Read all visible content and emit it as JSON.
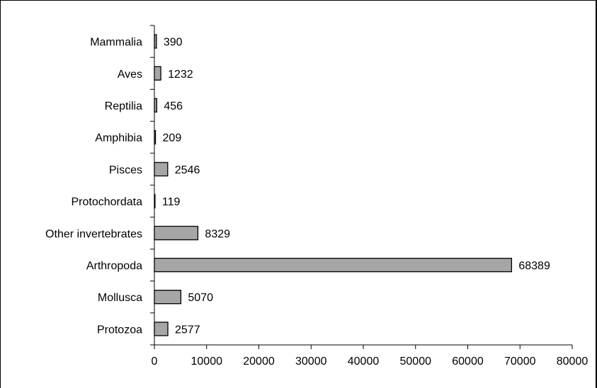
{
  "chart_data": {
    "type": "bar",
    "orientation": "horizontal",
    "categories": [
      "Mammalia",
      "Aves",
      "Reptilia",
      "Amphibia",
      "Pisces",
      "Protochordata",
      "Other invertebrates",
      "Arthropoda",
      "Mollusca",
      "Protozoa"
    ],
    "values": [
      390,
      1232,
      456,
      209,
      2546,
      119,
      8329,
      68389,
      5070,
      2577
    ],
    "value_labels": [
      "390",
      "1232",
      "456",
      "209",
      "2546",
      "119",
      "8329",
      "68389",
      "5070",
      "2577"
    ],
    "x_ticks": [
      "0",
      "10000",
      "20000",
      "30000",
      "40000",
      "50000",
      "60000",
      "70000",
      "80000"
    ],
    "xlim": [
      0,
      80000
    ],
    "grid": false,
    "legend": "none",
    "bar_color": "#a6a6a6",
    "title": "",
    "xlabel": "",
    "ylabel": ""
  }
}
